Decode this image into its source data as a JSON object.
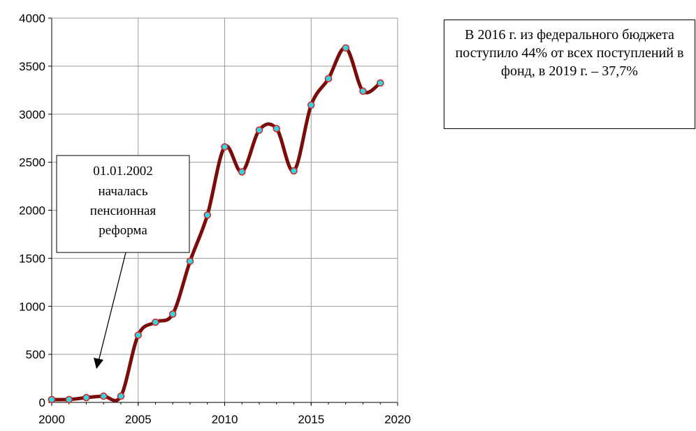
{
  "chart_data": {
    "type": "line",
    "title": "",
    "xlabel": "",
    "ylabel": "",
    "xlim": [
      2000,
      2020
    ],
    "ylim": [
      0,
      4000
    ],
    "x_ticks": [
      "2000",
      "2005",
      "2010",
      "2015",
      "2020"
    ],
    "y_ticks": [
      "0",
      "500",
      "1000",
      "1500",
      "2000",
      "2500",
      "3000",
      "3500",
      "4000"
    ],
    "grid": true,
    "series": [
      {
        "name": "",
        "color": "#7a0c0c",
        "marker_color": "#33d6e0",
        "marker_edge": "#d42020",
        "points": [
          {
            "x": 2000,
            "y": 30
          },
          {
            "x": 2001,
            "y": 30
          },
          {
            "x": 2002,
            "y": 50
          },
          {
            "x": 2003,
            "y": 65
          },
          {
            "x": 2004,
            "y": 65
          },
          {
            "x": 2005,
            "y": 700
          },
          {
            "x": 2006,
            "y": 835
          },
          {
            "x": 2007,
            "y": 920
          },
          {
            "x": 2008,
            "y": 1470
          },
          {
            "x": 2009,
            "y": 1950
          },
          {
            "x": 2010,
            "y": 2660
          },
          {
            "x": 2011,
            "y": 2400
          },
          {
            "x": 2012,
            "y": 2835
          },
          {
            "x": 2013,
            "y": 2850
          },
          {
            "x": 2014,
            "y": 2410
          },
          {
            "x": 2015,
            "y": 3095
          },
          {
            "x": 2016,
            "y": 3370
          },
          {
            "x": 2017,
            "y": 3690
          },
          {
            "x": 2018,
            "y": 3240
          },
          {
            "x": 2019,
            "y": 3325
          }
        ]
      }
    ],
    "annotations": {
      "reform_lines": [
        "01.01.2002",
        "началась",
        "пенсионная",
        "реформа"
      ],
      "note_text": "В 2016 г. из федерального бюджета поступило 44% от всех поступлений в фонд, в 2019 г. – 37,7%"
    }
  }
}
